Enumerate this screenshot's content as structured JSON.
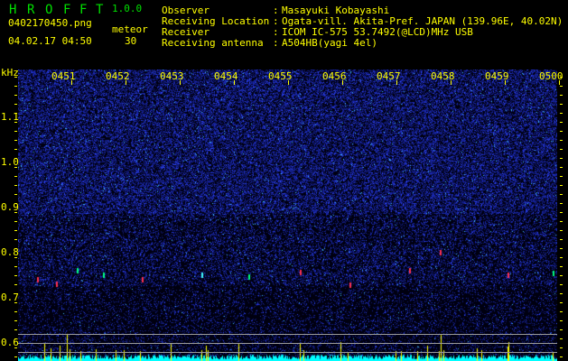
{
  "app": {
    "title_letters": [
      "H",
      "R",
      "O",
      "F",
      "F",
      "T"
    ],
    "version": "1.0.0"
  },
  "file": {
    "name": "0402170450.png",
    "datetime": "04.02.17 04:50"
  },
  "meteor": {
    "label": "meteor",
    "count": "30"
  },
  "info": [
    {
      "label": "Observer",
      "value": "Masayuki Kobayashi"
    },
    {
      "label": "Receiving Location",
      "value": "Ogata-vill. Akita-Pref. JAPAN (139.96E, 40.02N)"
    },
    {
      "label": "Receiver",
      "value": "ICOM IC-575 53.7492(@LCD)MHz USB"
    },
    {
      "label": "Receiving antenna",
      "value": "A504HB(yagi 4el)"
    }
  ],
  "y_axis": {
    "unit": "kHz",
    "labels": [
      "1.1",
      "1.0",
      "0.9",
      "0.8",
      "0.7",
      "0.6"
    ]
  },
  "time_labels": [
    "0451",
    "0452",
    "0453",
    "0454",
    "0455",
    "0456",
    "0457",
    "0458",
    "0459",
    "0500"
  ],
  "colors": {
    "text": "#ffff00",
    "title": "#00e000",
    "noise": "#2030c0",
    "histogram": "#00ffff",
    "meteor_spike": "#ffff00"
  }
}
